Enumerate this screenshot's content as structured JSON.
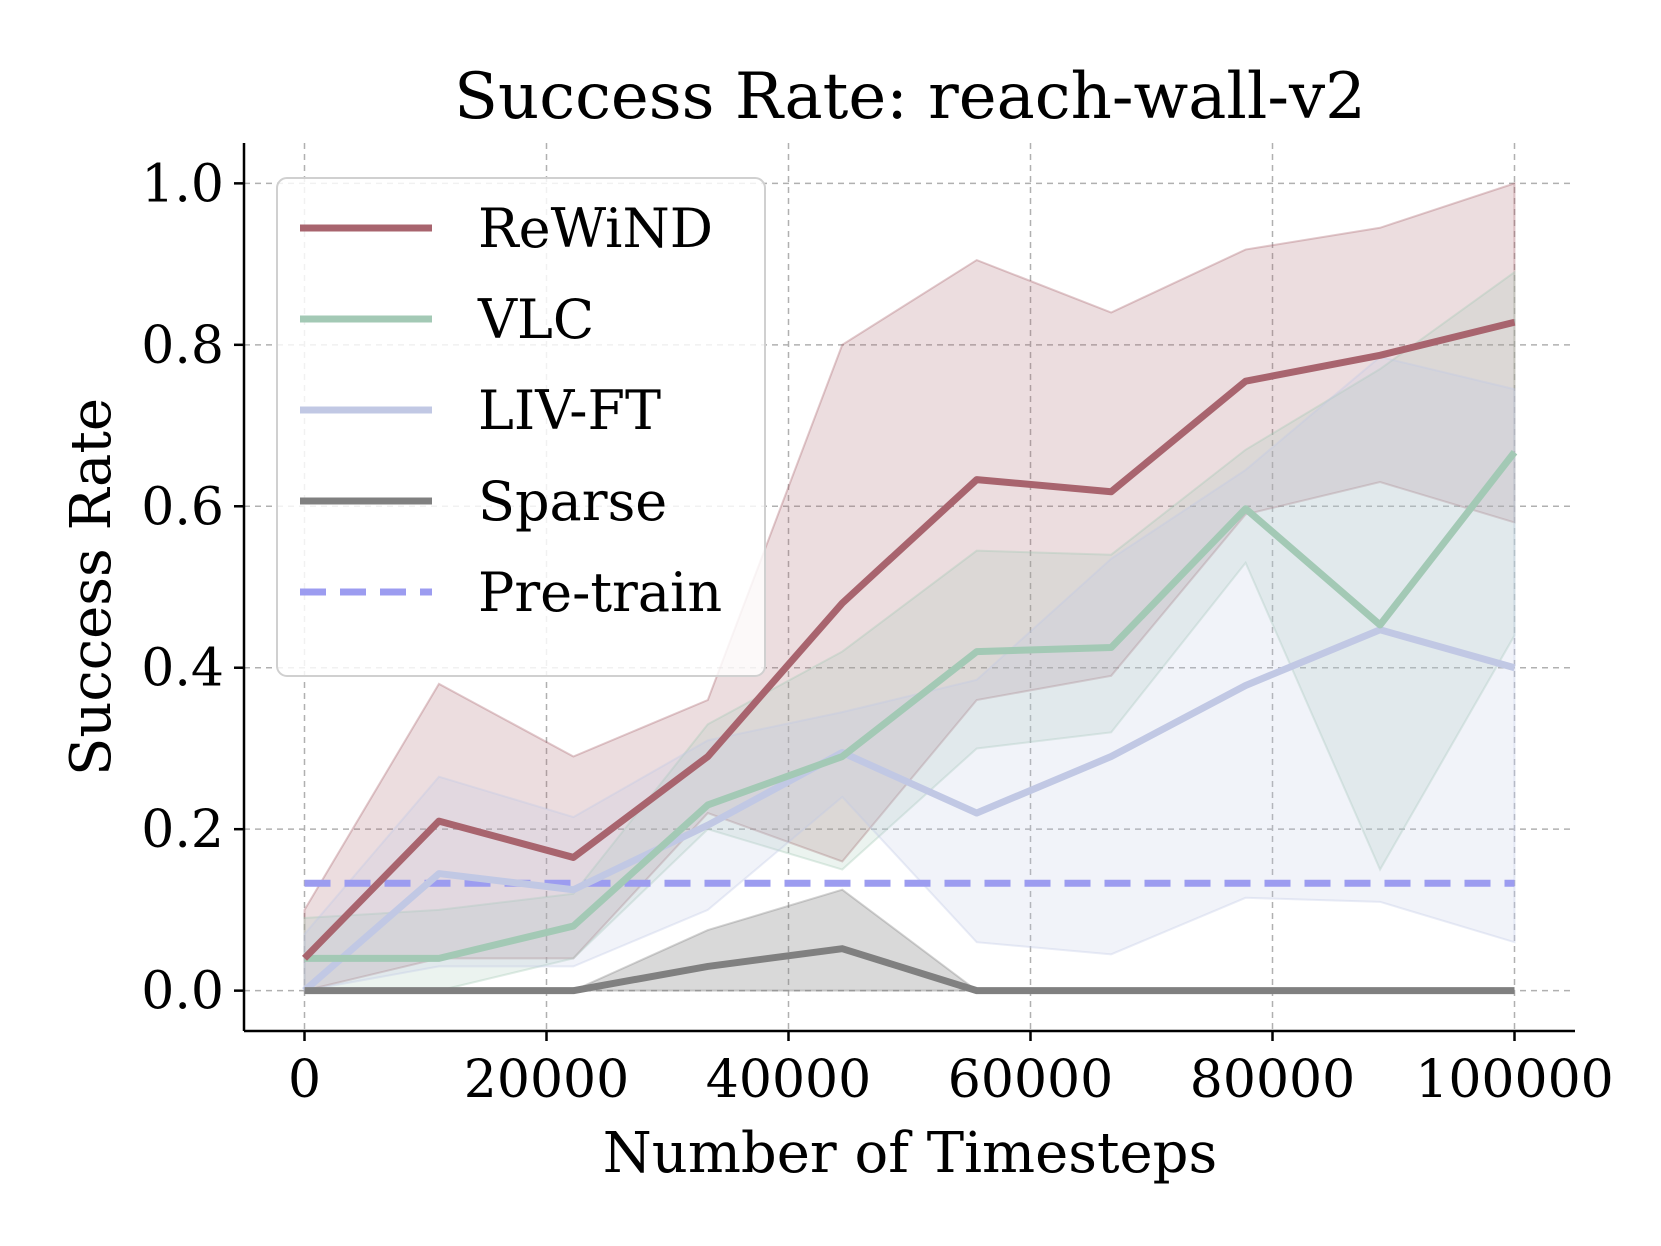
{
  "chart_data": {
    "type": "line",
    "title": "Success Rate: reach-wall-v2",
    "xlabel": "Number of Timesteps",
    "ylabel": "Success Rate",
    "xlim": [
      -5000,
      105000
    ],
    "ylim": [
      -0.05,
      1.05
    ],
    "xticks": [
      0,
      20000,
      40000,
      60000,
      80000,
      100000
    ],
    "xtick_labels": [
      "0",
      "20000",
      "40000",
      "60000",
      "80000",
      "100000"
    ],
    "yticks": [
      0.0,
      0.2,
      0.4,
      0.6,
      0.8,
      1.0
    ],
    "ytick_labels": [
      "0.0",
      "0.2",
      "0.4",
      "0.6",
      "0.8",
      "1.0"
    ],
    "grid": true,
    "legend_position": "top-left",
    "x": [
      0,
      11111,
      22222,
      33333,
      44444,
      55556,
      66667,
      77778,
      88889,
      100000
    ],
    "series": [
      {
        "name": "ReWiND",
        "color": "#a8646e",
        "values": [
          0.04,
          0.21,
          0.165,
          0.29,
          0.48,
          0.633,
          0.618,
          0.755,
          0.787,
          0.828
        ],
        "lower": [
          0.0,
          0.04,
          0.04,
          0.22,
          0.16,
          0.36,
          0.39,
          0.59,
          0.63,
          0.58
        ],
        "upper": [
          0.1,
          0.38,
          0.29,
          0.36,
          0.8,
          0.905,
          0.84,
          0.918,
          0.945,
          1.0
        ]
      },
      {
        "name": "VLC",
        "color": "#a3c9b5",
        "values": [
          0.04,
          0.04,
          0.08,
          0.23,
          0.29,
          0.42,
          0.425,
          0.597,
          0.453,
          0.667
        ],
        "lower": [
          0.0,
          0.0,
          0.04,
          0.2,
          0.15,
          0.3,
          0.32,
          0.53,
          0.15,
          0.44
        ],
        "upper": [
          0.09,
          0.1,
          0.12,
          0.33,
          0.42,
          0.545,
          0.54,
          0.67,
          0.77,
          0.89
        ]
      },
      {
        "name": "LIV-FT",
        "color": "#c1c8e4",
        "values": [
          0.0,
          0.145,
          0.125,
          0.205,
          0.295,
          0.22,
          0.29,
          0.378,
          0.447,
          0.4
        ],
        "lower": [
          0.0,
          0.03,
          0.03,
          0.1,
          0.24,
          0.06,
          0.045,
          0.115,
          0.11,
          0.06
        ],
        "upper": [
          0.07,
          0.265,
          0.215,
          0.31,
          0.345,
          0.385,
          0.535,
          0.645,
          0.785,
          0.745
        ]
      },
      {
        "name": "Sparse",
        "color": "#808080",
        "values": [
          0.0,
          0.0,
          0.0,
          0.03,
          0.052,
          0.0,
          0.0,
          0.0,
          0.0,
          0.0
        ],
        "lower": [
          0.0,
          0.0,
          0.0,
          0.0,
          0.0,
          0.0,
          0.0,
          0.0,
          0.0,
          0.0
        ],
        "upper": [
          0.0,
          0.0,
          0.0,
          0.075,
          0.125,
          0.0,
          0.0,
          0.0,
          0.0,
          0.0
        ]
      },
      {
        "name": "Pre-train",
        "color": "#9c9cf0",
        "dashed": true,
        "values": [
          0.133,
          0.133,
          0.133,
          0.133,
          0.133,
          0.133,
          0.133,
          0.133,
          0.133,
          0.133
        ]
      }
    ]
  }
}
